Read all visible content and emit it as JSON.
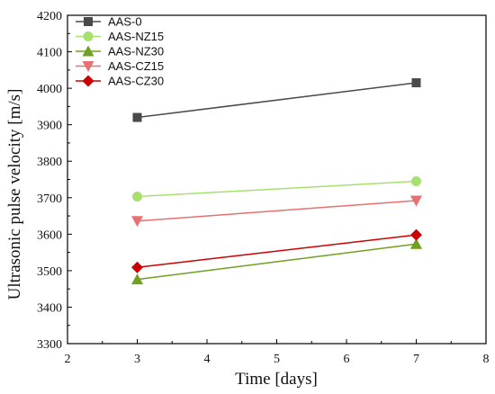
{
  "chart_data": {
    "type": "line",
    "title": "",
    "xlabel": "Time [days]",
    "ylabel": "Ultrasonic pulse velocity [m/s]",
    "xlim": [
      2,
      8
    ],
    "ylim": [
      3300,
      4200
    ],
    "xticks": [
      2,
      3,
      4,
      5,
      6,
      7,
      8
    ],
    "yticks": [
      3300,
      3400,
      3500,
      3600,
      3700,
      3800,
      3900,
      4000,
      4100,
      4200
    ],
    "grid": false,
    "legend_position": "top-left",
    "x": [
      3,
      7
    ],
    "series": [
      {
        "name": "AAS-0",
        "values": [
          3920,
          4015
        ],
        "color": "#4a4a4a",
        "marker": "square",
        "error": [
          0,
          0
        ]
      },
      {
        "name": "AAS-NZ15",
        "values": [
          3703,
          3745
        ],
        "color": "#a8e070",
        "marker": "circle",
        "error": [
          0,
          0
        ]
      },
      {
        "name": "AAS-NZ30",
        "values": [
          3476,
          3573
        ],
        "color": "#6fa020",
        "marker": "triangle-up",
        "error": [
          0,
          0
        ]
      },
      {
        "name": "AAS-CZ15",
        "values": [
          3636,
          3692
        ],
        "color": "#e87070",
        "marker": "triangle-down",
        "error": [
          0,
          0
        ]
      },
      {
        "name": "AAS-CZ30",
        "values": [
          3509,
          3598
        ],
        "color": "#cc0000",
        "marker": "diamond",
        "error": [
          0,
          0
        ]
      }
    ]
  }
}
